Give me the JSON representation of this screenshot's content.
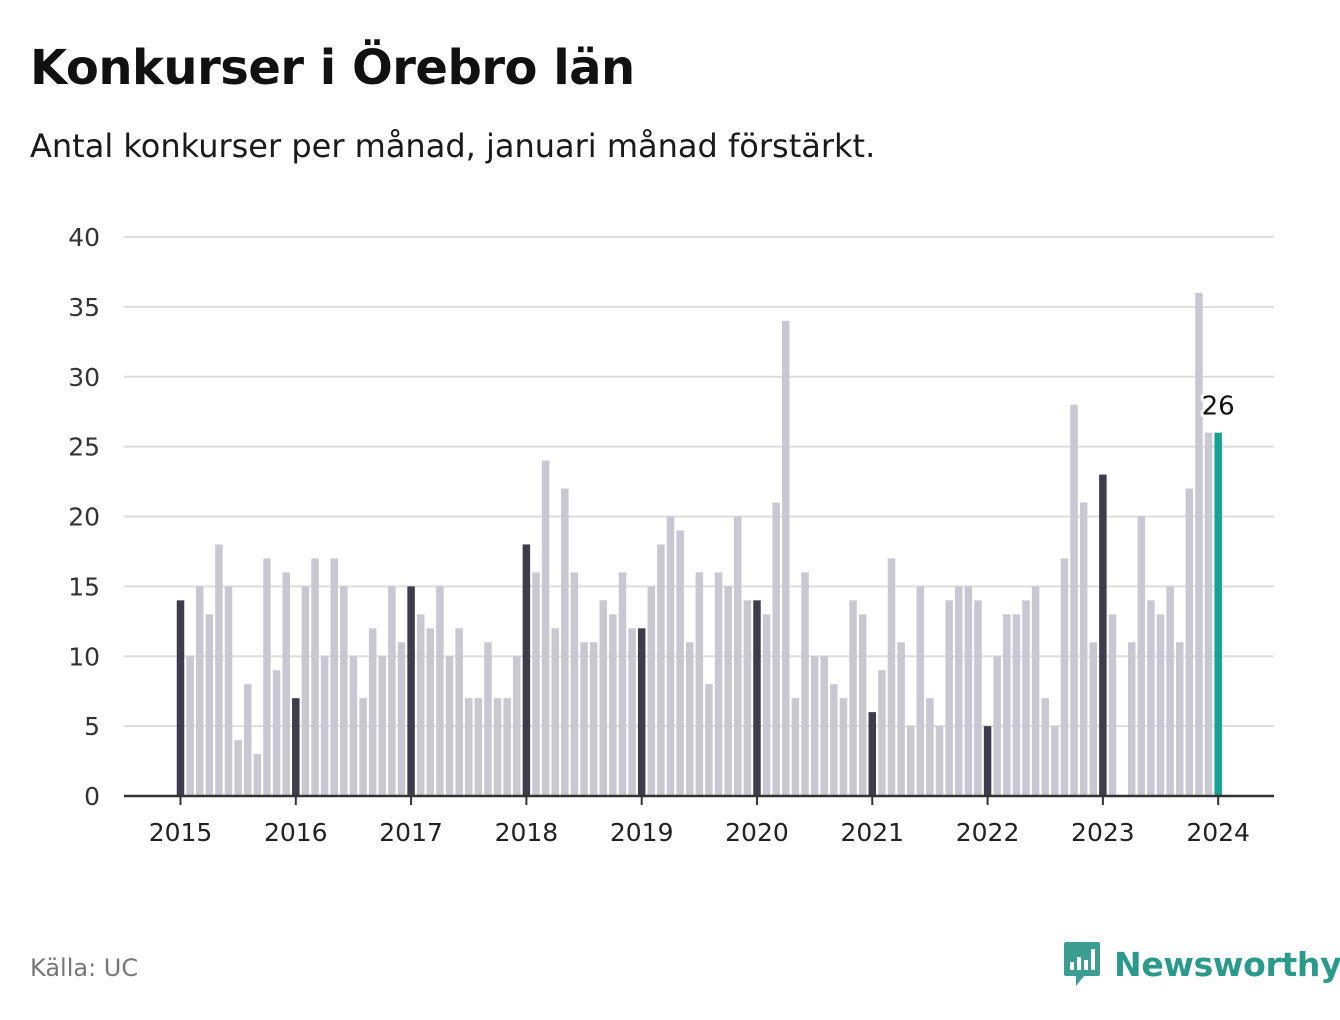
{
  "header": {
    "title": "Konkurser i Örebro län",
    "subtitle": "Antal konkurser per månad, januari månad förstärkt."
  },
  "footer": {
    "source": "Källa: UC",
    "brand": "Newsworthy",
    "brand_icon": "newsworthy-logo-icon"
  },
  "colors": {
    "january": "#3f3d4c",
    "other_month": "#c8c7d2",
    "latest": "#17a294",
    "grid": "#dddddd",
    "axis": "#333333",
    "brand": "#2a9a8c"
  },
  "chart_data": {
    "type": "bar",
    "title": "Konkurser i Örebro län",
    "subtitle": "Antal konkurser per månad, januari månad förstärkt.",
    "xlabel": "",
    "ylabel": "",
    "ylim": [
      0,
      40
    ],
    "yticks": [
      0,
      5,
      10,
      15,
      20,
      25,
      30,
      35,
      40
    ],
    "x_tick_labels": [
      "2015",
      "2016",
      "2017",
      "2018",
      "2019",
      "2020",
      "2021",
      "2022",
      "2023",
      "2024"
    ],
    "grid": true,
    "legend": "none",
    "series": [
      {
        "years": [
          {
            "year": "2015",
            "values": [
              14,
              10,
              15,
              13,
              18,
              15,
              4,
              8,
              3,
              17,
              9,
              16
            ]
          },
          {
            "year": "2016",
            "values": [
              7,
              15,
              17,
              10,
              17,
              15,
              10,
              7,
              12,
              10,
              15,
              11
            ]
          },
          {
            "year": "2017",
            "values": [
              15,
              13,
              12,
              15,
              10,
              12,
              7,
              7,
              11,
              7,
              7,
              10
            ]
          },
          {
            "year": "2018",
            "values": [
              18,
              16,
              24,
              12,
              22,
              16,
              11,
              11,
              14,
              13,
              16,
              12
            ]
          },
          {
            "year": "2019",
            "values": [
              12,
              15,
              18,
              20,
              19,
              11,
              16,
              8,
              16,
              15,
              20,
              14
            ]
          },
          {
            "year": "2020",
            "values": [
              14,
              13,
              21,
              34,
              7,
              16,
              10,
              10,
              8,
              7,
              14,
              13
            ]
          },
          {
            "year": "2021",
            "values": [
              6,
              9,
              17,
              11,
              5,
              15,
              7,
              5,
              14,
              15,
              15,
              14
            ]
          },
          {
            "year": "2022",
            "values": [
              5,
              10,
              13,
              13,
              14,
              15,
              7,
              5,
              17,
              28,
              21,
              11
            ]
          },
          {
            "year": "2023",
            "values": [
              23,
              13,
              0,
              11,
              20,
              14,
              13,
              15,
              11,
              22,
              36,
              26
            ]
          },
          {
            "year": "2024",
            "values": [
              26
            ]
          }
        ]
      }
    ],
    "highlight": {
      "category": "2024-01",
      "label": "26"
    }
  }
}
